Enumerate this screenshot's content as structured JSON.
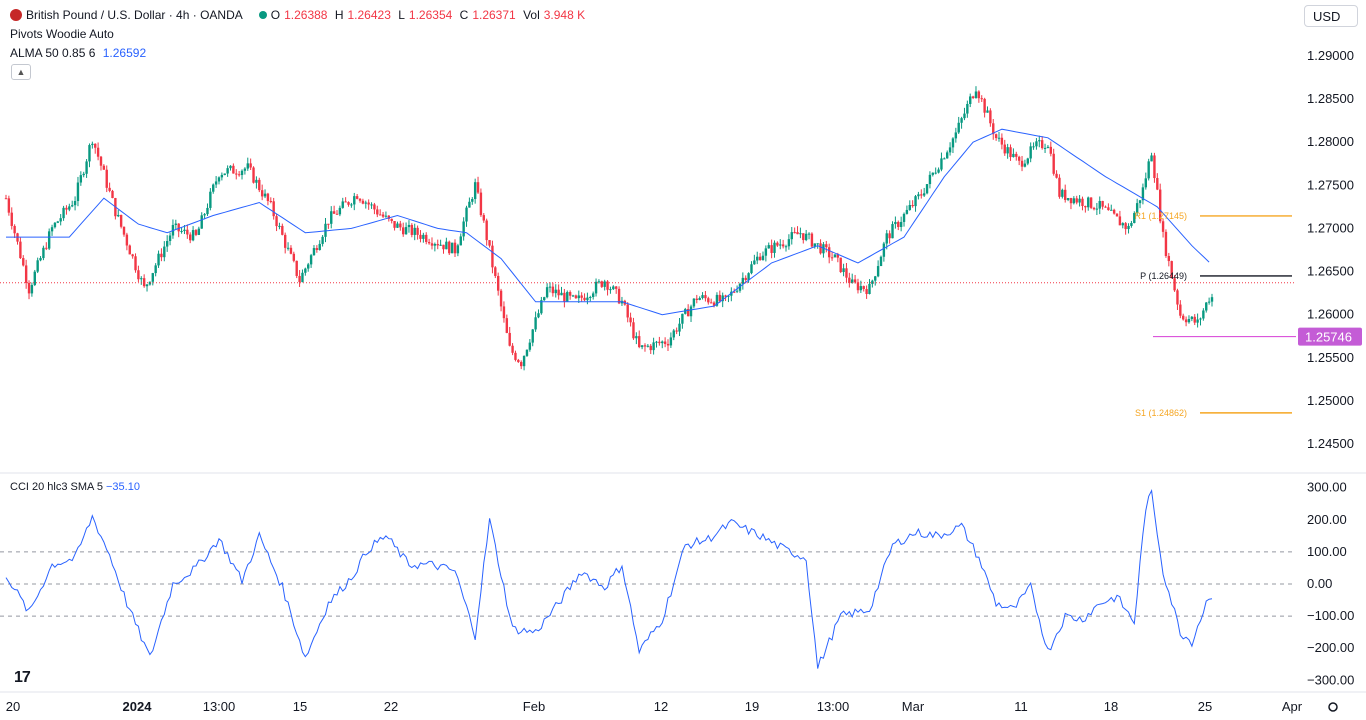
{
  "legend": {
    "symbol": "British Pound / U.S. Dollar · 4h · OANDA",
    "o_label": "O",
    "o_value": "1.26388",
    "h_label": "H",
    "h_value": "1.26423",
    "l_label": "L",
    "l_value": "1.26354",
    "c_label": "C",
    "c_value": "1.26371",
    "vol_label": "Vol",
    "vol_value": "3.948 K",
    "pivots": "Pivots Woodie Auto",
    "alma_label": "ALMA 50 0.85 6",
    "alma_value": "1.26592",
    "collapse_icon": "chevron-up-icon"
  },
  "currency": "USD",
  "cci_legend": {
    "label": "CCI 20 hlc3 SMA 5",
    "value": "−35.10"
  },
  "logo_text": "17",
  "colors": {
    "up": "#089981",
    "down": "#f23645",
    "alma": "#2962ff",
    "cci": "#2962ff",
    "pivot_r1": "#f5a623",
    "support": "#d63fd6",
    "price_line": "#f23645"
  },
  "chart_data": [
    {
      "type": "candlestick",
      "price_axis": {
        "ticks": [
          "1.29000",
          "1.28500",
          "1.28000",
          "1.27500",
          "1.27000",
          "1.26500",
          "1.26000",
          "1.25500",
          "1.25000",
          "1.24500"
        ],
        "range": [
          1.242,
          1.293
        ]
      },
      "time_axis": {
        "labels": [
          "20",
          "2024",
          "13:00",
          "15",
          "22",
          "Feb",
          "12",
          "19",
          "13:00",
          "Mar",
          "11",
          "18",
          "25",
          "Apr"
        ],
        "bold": [
          "2024"
        ]
      },
      "pivot_levels": [
        {
          "label": "R1 (1.27145)",
          "value": 1.27145
        },
        {
          "label": "P (1.26449)",
          "value": 1.26449
        },
        {
          "label": "S1 (1.24862)",
          "value": 1.24862
        }
      ],
      "support_line": {
        "value": 1.25746,
        "label": "1.25746"
      },
      "last_price": 1.26371,
      "price_swings": [
        [
          0,
          1.2735
        ],
        [
          8,
          1.263
        ],
        [
          16,
          1.27
        ],
        [
          24,
          1.2735
        ],
        [
          30,
          1.2805
        ],
        [
          38,
          1.272
        ],
        [
          48,
          1.263
        ],
        [
          58,
          1.27
        ],
        [
          66,
          1.269
        ],
        [
          74,
          1.2765
        ],
        [
          84,
          1.277
        ],
        [
          92,
          1.2725
        ],
        [
          102,
          1.264
        ],
        [
          112,
          1.271
        ],
        [
          122,
          1.274
        ],
        [
          134,
          1.2705
        ],
        [
          146,
          1.269
        ],
        [
          156,
          1.2675
        ],
        [
          163,
          1.275
        ],
        [
          167,
          1.269
        ],
        [
          175,
          1.256
        ],
        [
          179,
          1.2545
        ],
        [
          188,
          1.263
        ],
        [
          198,
          1.2615
        ],
        [
          208,
          1.264
        ],
        [
          214,
          1.2615
        ],
        [
          220,
          1.256
        ],
        [
          230,
          1.257
        ],
        [
          240,
          1.262
        ],
        [
          250,
          1.2615
        ],
        [
          262,
          1.267
        ],
        [
          276,
          1.2695
        ],
        [
          288,
          1.2665
        ],
        [
          294,
          1.2635
        ],
        [
          300,
          1.263
        ],
        [
          306,
          1.269
        ],
        [
          318,
          1.274
        ],
        [
          330,
          1.281
        ],
        [
          337,
          1.2865
        ],
        [
          344,
          1.2805
        ],
        [
          352,
          1.2775
        ],
        [
          358,
          1.2795
        ],
        [
          362,
          1.28
        ],
        [
          366,
          1.274
        ],
        [
          380,
          1.2725
        ],
        [
          390,
          1.27
        ],
        [
          395,
          1.2745
        ],
        [
          398,
          1.279
        ],
        [
          402,
          1.269
        ],
        [
          408,
          1.26
        ],
        [
          414,
          1.259
        ],
        [
          418,
          1.262
        ]
      ],
      "alma_swings": [
        [
          0,
          1.269
        ],
        [
          10,
          1.269
        ],
        [
          22,
          1.269
        ],
        [
          34,
          1.2735
        ],
        [
          46,
          1.2705
        ],
        [
          56,
          1.2695
        ],
        [
          72,
          1.2715
        ],
        [
          88,
          1.273
        ],
        [
          104,
          1.2695
        ],
        [
          120,
          1.27
        ],
        [
          136,
          1.2715
        ],
        [
          150,
          1.27
        ],
        [
          160,
          1.2695
        ],
        [
          172,
          1.2665
        ],
        [
          184,
          1.2615
        ],
        [
          200,
          1.2615
        ],
        [
          214,
          1.2615
        ],
        [
          228,
          1.26
        ],
        [
          246,
          1.261
        ],
        [
          266,
          1.266
        ],
        [
          282,
          1.268
        ],
        [
          296,
          1.266
        ],
        [
          312,
          1.269
        ],
        [
          326,
          1.276
        ],
        [
          336,
          1.28
        ],
        [
          346,
          1.2815
        ],
        [
          362,
          1.2805
        ],
        [
          382,
          1.276
        ],
        [
          400,
          1.2725
        ],
        [
          412,
          1.268
        ],
        [
          418,
          1.2661
        ]
      ]
    },
    {
      "type": "line",
      "name": "CCI 20 hlc3 SMA 5",
      "y_axis": {
        "ticks": [
          "300.00",
          "200.00",
          "100.00",
          "0.00",
          "−100.00",
          "−200.00",
          "−300.00"
        ],
        "range": [
          -330,
          330
        ]
      },
      "bands": [
        100,
        0,
        -100
      ],
      "cci_swings": [
        [
          0,
          30
        ],
        [
          8,
          -90
        ],
        [
          16,
          60
        ],
        [
          24,
          80
        ],
        [
          30,
          210
        ],
        [
          36,
          90
        ],
        [
          42,
          -60
        ],
        [
          50,
          -230
        ],
        [
          58,
          0
        ],
        [
          66,
          50
        ],
        [
          74,
          140
        ],
        [
          82,
          10
        ],
        [
          88,
          150
        ],
        [
          96,
          -10
        ],
        [
          104,
          -230
        ],
        [
          112,
          -60
        ],
        [
          120,
          20
        ],
        [
          126,
          110
        ],
        [
          132,
          150
        ],
        [
          140,
          60
        ],
        [
          148,
          60
        ],
        [
          156,
          40
        ],
        [
          163,
          -160
        ],
        [
          168,
          200
        ],
        [
          176,
          -140
        ],
        [
          184,
          -150
        ],
        [
          192,
          -60
        ],
        [
          200,
          40
        ],
        [
          208,
          -10
        ],
        [
          214,
          60
        ],
        [
          220,
          -210
        ],
        [
          228,
          -110
        ],
        [
          236,
          120
        ],
        [
          244,
          140
        ],
        [
          252,
          190
        ],
        [
          262,
          150
        ],
        [
          270,
          110
        ],
        [
          278,
          80
        ],
        [
          282,
          -260
        ],
        [
          290,
          -100
        ],
        [
          300,
          -80
        ],
        [
          308,
          120
        ],
        [
          316,
          160
        ],
        [
          324,
          150
        ],
        [
          332,
          180
        ],
        [
          338,
          80
        ],
        [
          344,
          -60
        ],
        [
          350,
          -80
        ],
        [
          356,
          -10
        ],
        [
          362,
          -210
        ],
        [
          368,
          -100
        ],
        [
          374,
          -110
        ],
        [
          380,
          -60
        ],
        [
          386,
          -40
        ],
        [
          392,
          -120
        ],
        [
          396,
          240
        ],
        [
          398,
          280
        ],
        [
          402,
          40
        ],
        [
          408,
          -150
        ],
        [
          412,
          -180
        ],
        [
          418,
          -35
        ]
      ]
    }
  ]
}
